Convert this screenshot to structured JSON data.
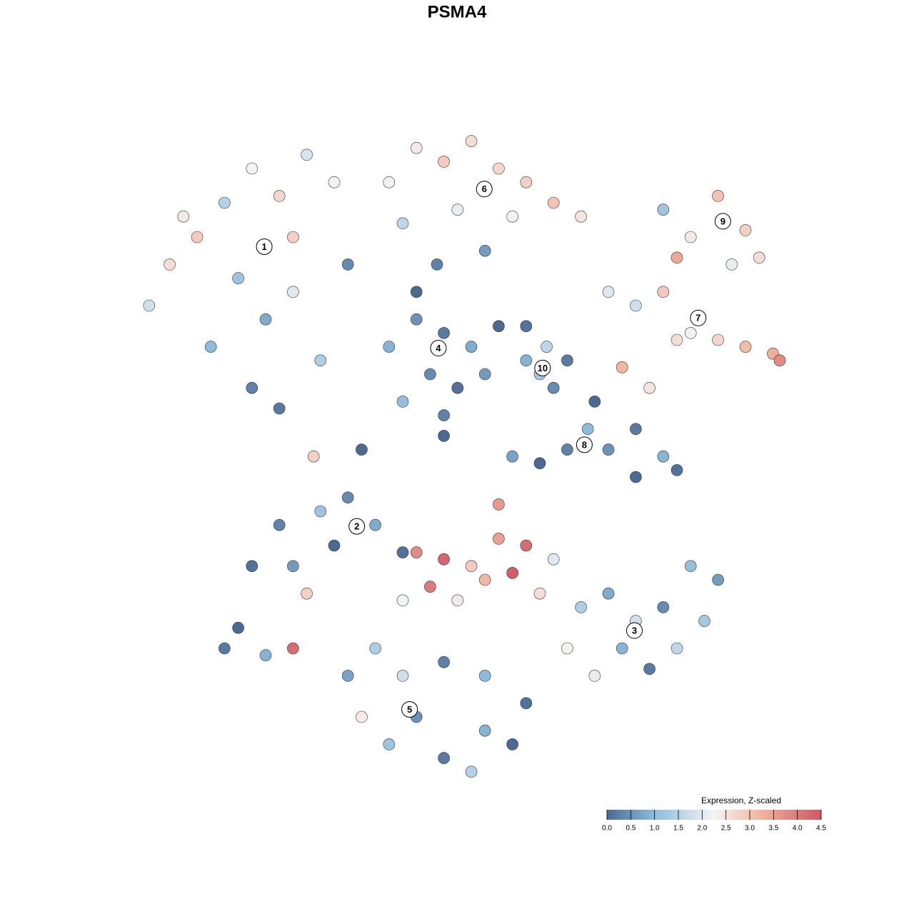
{
  "chart_data": {
    "type": "scatter",
    "title": "PSMA4",
    "xlim": [
      -50,
      50
    ],
    "ylim": [
      -50,
      50
    ],
    "x": [
      -44,
      -47,
      -40,
      -36,
      -32,
      -28,
      -24,
      -20,
      -34,
      -30,
      -26,
      -38,
      -32,
      -28,
      -22,
      -18,
      -42,
      -26,
      -12,
      -8,
      -4,
      0,
      4,
      8,
      12,
      16,
      -10,
      -2,
      6,
      -5,
      2,
      28,
      32,
      36,
      40,
      42,
      38,
      30,
      20,
      24,
      28,
      32,
      36,
      40,
      44,
      45,
      22,
      26,
      30,
      -12,
      -8,
      -4,
      0,
      -6,
      -2,
      -10,
      -4,
      2,
      -8,
      4,
      8,
      8,
      10,
      12,
      14,
      11,
      18,
      17,
      20,
      24,
      28,
      30,
      24,
      14,
      10,
      6,
      -28,
      -32,
      -26,
      -22,
      -18,
      -14,
      -20,
      -24,
      -36,
      -30,
      -26,
      -34,
      -10,
      -8,
      -4,
      0,
      4,
      8,
      -6,
      2,
      6,
      -2,
      10,
      -10,
      4,
      12,
      16,
      20,
      24,
      28,
      32,
      36,
      30,
      22,
      18,
      26,
      34,
      14,
      -14,
      -18,
      -10,
      -4,
      2,
      -8,
      -12,
      -4,
      2,
      6,
      -16,
      0,
      8,
      -23,
      -16,
      -4
    ],
    "y": [
      26,
      20,
      30,
      35,
      40,
      36,
      42,
      38,
      24,
      18,
      22,
      14,
      8,
      5,
      12,
      26,
      33,
      30,
      38,
      43,
      41,
      44,
      40,
      38,
      35,
      33,
      32,
      34,
      33,
      26,
      28,
      34,
      30,
      36,
      31,
      27,
      26,
      27,
      22,
      20,
      22,
      16,
      15,
      14,
      13,
      12,
      11,
      8,
      15,
      14,
      18,
      16,
      14,
      10,
      8,
      6,
      4,
      10,
      22,
      17,
      17,
      12,
      10,
      8,
      12,
      14,
      6,
      2,
      -1,
      2,
      -2,
      -4,
      -5,
      -1,
      -3,
      -2,
      -12,
      -18,
      -18,
      -10,
      -8,
      -12,
      -15,
      -22,
      -30,
      -31,
      -30,
      -27,
      -16,
      -16,
      -17,
      -18,
      -14,
      -15,
      -21,
      -20,
      -19,
      -23,
      -22,
      -23,
      -9,
      -17,
      -24,
      -22,
      -26,
      -24,
      -18,
      -20,
      -30,
      -30,
      -34,
      -33,
      -26,
      -30,
      -30,
      -34,
      -34,
      -32,
      -34,
      -40,
      -44,
      -46,
      -42,
      -44,
      -40,
      -48,
      -38,
      -2,
      -1,
      1
    ],
    "values": [
      2.6,
      1.8,
      2.9,
      1.5,
      2.2,
      2.7,
      1.9,
      2.3,
      1.2,
      0.8,
      2.0,
      1.0,
      0.3,
      0.2,
      1.4,
      0.4,
      2.4,
      2.8,
      2.2,
      2.4,
      2.9,
      2.6,
      2.7,
      2.8,
      3.0,
      2.5,
      1.6,
      2.1,
      2.2,
      0.3,
      0.6,
      1.2,
      2.4,
      3.0,
      2.8,
      2.6,
      2.1,
      3.4,
      2.0,
      1.8,
      2.9,
      2.3,
      2.7,
      3.1,
      3.3,
      3.8,
      3.2,
      2.5,
      2.6,
      0.9,
      0.5,
      0.2,
      0.8,
      0.4,
      0.1,
      1.1,
      0.3,
      0.6,
      0.0,
      0.0,
      0.1,
      0.9,
      1.3,
      0.4,
      0.2,
      1.6,
      0.0,
      1.0,
      0.5,
      0.2,
      0.9,
      0.1,
      0.0,
      0.3,
      0.0,
      0.7,
      0.3,
      0.1,
      0.6,
      1.2,
      0.4,
      0.8,
      0.0,
      2.8,
      0.2,
      0.9,
      4.2,
      0.0,
      0.1,
      3.8,
      4.3,
      2.9,
      3.5,
      4.2,
      4.0,
      3.2,
      4.4,
      2.4,
      2.6,
      2.2,
      3.6,
      2.0,
      1.4,
      0.8,
      1.8,
      0.4,
      1.1,
      0.6,
      1.6,
      0.9,
      2.1,
      0.2,
      1.3,
      2.3,
      1.4,
      0.7,
      1.8,
      0.3,
      1.0,
      0.5,
      1.2,
      0.2,
      0.9,
      0.0,
      2.4,
      1.5,
      0.1,
      2.8,
      0.0,
      0.0
    ],
    "annotations": [
      {
        "text": "1",
        "x": -30.2,
        "y": 28.6
      },
      {
        "text": "2",
        "x": -16.7,
        "y": -12.2
      },
      {
        "text": "3",
        "x": 23.8,
        "y": -27.4
      },
      {
        "text": "4",
        "x": -4.8,
        "y": 13.8
      },
      {
        "text": "5",
        "x": -9,
        "y": -38.9
      },
      {
        "text": "6",
        "x": 1.9,
        "y": 37
      },
      {
        "text": "7",
        "x": 33.1,
        "y": 18.2
      },
      {
        "text": "8",
        "x": 16.5,
        "y": -0.3
      },
      {
        "text": "9",
        "x": 36.7,
        "y": 32.3
      },
      {
        "text": "10",
        "x": 10.4,
        "y": 10.9
      }
    ],
    "colorbar": {
      "title": "Expression, Z-scaled",
      "lim": [
        0,
        4.5
      ],
      "ticks": [
        {
          "value": 0,
          "label": "0.0"
        },
        {
          "value": 0.5,
          "label": "0.5"
        },
        {
          "value": 1,
          "label": "1.0"
        },
        {
          "value": 1.5,
          "label": "1.5"
        },
        {
          "value": 2,
          "label": "2.0"
        },
        {
          "value": 2.5,
          "label": "2.5"
        },
        {
          "value": 3,
          "label": "3.0"
        },
        {
          "value": 3.5,
          "label": "3.5"
        },
        {
          "value": 4,
          "label": "4.0"
        },
        {
          "value": 4.5,
          "label": "4.5"
        }
      ],
      "stops": [
        {
          "value": 0,
          "color": "#4b6a92"
        },
        {
          "value": 1,
          "color": "#8cbcdc"
        },
        {
          "value": 2.25,
          "color": "#f4f4f4"
        },
        {
          "value": 3.25,
          "color": "#f2b39c"
        },
        {
          "value": 4.5,
          "color": "#cd5766"
        }
      ]
    }
  }
}
